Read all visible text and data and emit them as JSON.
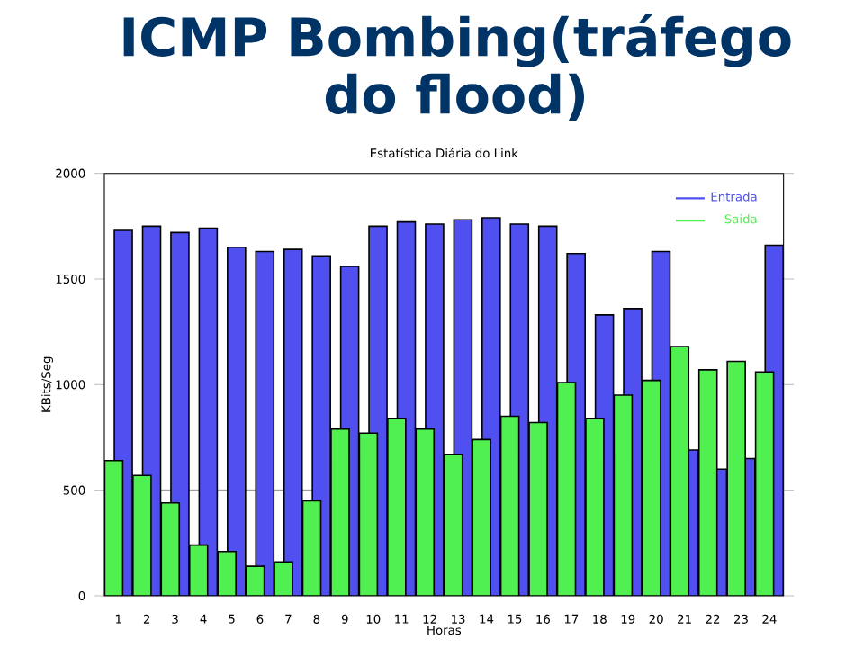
{
  "chart_data": {
    "type": "bar",
    "title": "ICMP Bombing(tráfego do flood)",
    "subtitle": "Estatística Diária do Link",
    "xlabel": "Horas",
    "ylabel": "KBits/Seg",
    "categories": [
      "1",
      "2",
      "3",
      "4",
      "5",
      "6",
      "7",
      "8",
      "9",
      "10",
      "11",
      "12",
      "13",
      "14",
      "15",
      "16",
      "17",
      "18",
      "19",
      "20",
      "21",
      "22",
      "23",
      "24"
    ],
    "series": [
      {
        "name": "Entrada",
        "color": "#5050f0",
        "values": [
          1730,
          1750,
          1720,
          1740,
          1650,
          1630,
          1640,
          1610,
          1560,
          1750,
          1770,
          1760,
          1780,
          1790,
          1760,
          1750,
          1620,
          1330,
          1360,
          1630,
          690,
          600,
          650,
          1660
        ]
      },
      {
        "name": "Saida",
        "color": "#50f050",
        "values": [
          640,
          570,
          440,
          240,
          210,
          140,
          160,
          450,
          790,
          770,
          840,
          790,
          670,
          740,
          850,
          820,
          1010,
          840,
          950,
          1020,
          1180,
          1070,
          1110,
          1060
        ]
      }
    ],
    "ylim": [
      0,
      2000
    ],
    "yticks": [
      0,
      500,
      1000,
      1500,
      2000
    ],
    "legend": "top right",
    "ref_lines": [
      {
        "axis": "y",
        "value": 500,
        "color": "#a0a0a0"
      }
    ]
  }
}
